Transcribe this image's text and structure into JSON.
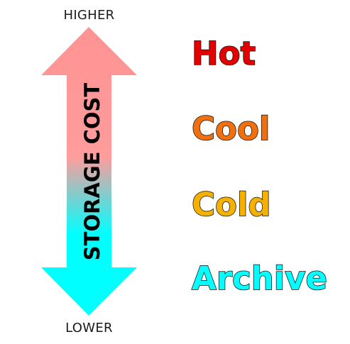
{
  "labels": {
    "top": "HIGHER",
    "bottom": "LOWER",
    "axis": "STORAGE COST"
  },
  "colors": {
    "arrow_top": "#ff9393",
    "arrow_mid": "#ff9c9c",
    "arrow_bottom": "#00ffff"
  },
  "tiers": [
    {
      "label": "Hot",
      "color": "#e30000"
    },
    {
      "label": "Cool",
      "color": "#f07010"
    },
    {
      "label": "Cold",
      "color": "#f5b000"
    },
    {
      "label": "Archive",
      "color": "#00ffff"
    }
  ]
}
